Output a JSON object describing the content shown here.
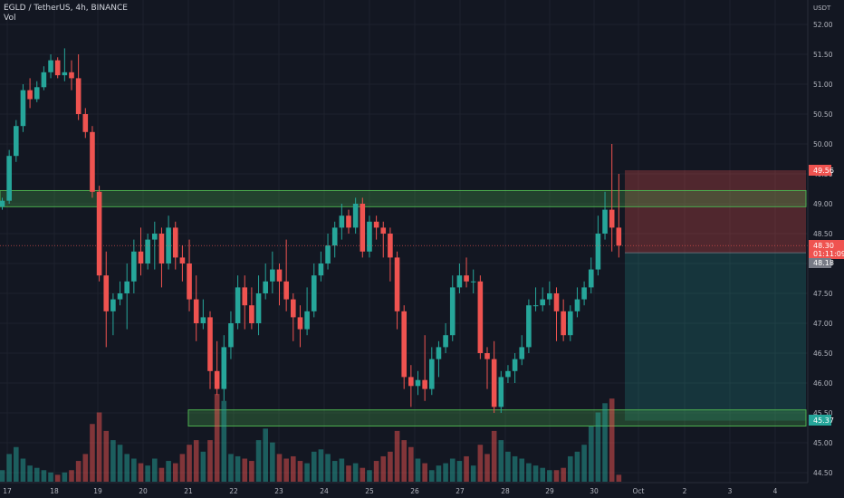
{
  "header": {
    "symbol_line": "EGLD / TetherUS, 4h, BINANCE",
    "volume_label": "Vol"
  },
  "axis": {
    "currency": "USDT",
    "price_ticks": [
      "52.00",
      "51.50",
      "51.00",
      "50.50",
      "50.00",
      "49.50",
      "49.00",
      "48.50",
      "48.00",
      "47.50",
      "47.00",
      "46.50",
      "46.00",
      "45.50",
      "45.00",
      "44.50"
    ],
    "date_ticks": [
      "17",
      "18",
      "19",
      "20",
      "21",
      "22",
      "23",
      "24",
      "25",
      "26",
      "27",
      "28",
      "29",
      "30",
      "Oct",
      "2",
      "3",
      "4"
    ]
  },
  "badges": {
    "target_price": "49.56",
    "last_price": "48.30",
    "countdown": "01:11:09",
    "position_price": "48.18",
    "stop_price": "45.37"
  },
  "colors": {
    "background": "#131722",
    "up": "#26a69a",
    "down": "#ef5350",
    "zone_fill": "rgba(76,175,80,0.28)",
    "zone_stroke": "#4caf50"
  },
  "chart_data": {
    "type": "candlestick",
    "symbol": "EGLD / TetherUS",
    "timeframe": "4h",
    "exchange": "BINANCE",
    "price_range": [
      44.4,
      52.2
    ],
    "current_price": 48.3,
    "zones": [
      {
        "low": 48.95,
        "high": 49.22
      },
      {
        "low": 45.28,
        "high": 45.55
      }
    ],
    "position": {
      "entry": 48.18,
      "target": 49.56,
      "stop": 45.37
    },
    "candles": [
      [
        48.95,
        49.05,
        48.9,
        49.1
      ],
      [
        49.05,
        49.8,
        49.0,
        49.9
      ],
      [
        49.8,
        50.3,
        49.7,
        50.4
      ],
      [
        50.3,
        50.9,
        50.2,
        51.0
      ],
      [
        50.9,
        50.75,
        50.6,
        51.1
      ],
      [
        50.75,
        50.95,
        50.7,
        51.05
      ],
      [
        50.95,
        51.2,
        50.9,
        51.3
      ],
      [
        51.2,
        51.4,
        51.1,
        51.5
      ],
      [
        51.4,
        51.15,
        51.1,
        51.45
      ],
      [
        51.15,
        51.2,
        51.05,
        51.6
      ],
      [
        51.2,
        51.1,
        50.9,
        51.4
      ],
      [
        51.1,
        50.5,
        50.4,
        51.5
      ],
      [
        50.5,
        50.2,
        50.1,
        50.6
      ],
      [
        50.2,
        49.2,
        49.1,
        50.3
      ],
      [
        49.2,
        47.8,
        47.7,
        49.3
      ],
      [
        47.8,
        47.2,
        46.6,
        48.2
      ],
      [
        47.2,
        47.4,
        46.8,
        47.5
      ],
      [
        47.4,
        47.5,
        47.3,
        47.7
      ],
      [
        47.5,
        47.7,
        46.9,
        48.0
      ],
      [
        47.7,
        48.2,
        47.5,
        48.4
      ],
      [
        48.2,
        48.0,
        47.8,
        48.6
      ],
      [
        48.0,
        48.4,
        47.9,
        48.5
      ],
      [
        48.4,
        48.5,
        47.9,
        48.7
      ],
      [
        48.5,
        48.0,
        47.6,
        48.6
      ],
      [
        48.0,
        48.6,
        47.9,
        48.8
      ],
      [
        48.6,
        48.1,
        47.9,
        48.7
      ],
      [
        48.1,
        48.0,
        47.7,
        48.3
      ],
      [
        48.0,
        47.4,
        47.2,
        48.4
      ],
      [
        47.4,
        47.0,
        46.7,
        47.8
      ],
      [
        47.0,
        47.1,
        46.9,
        47.4
      ],
      [
        47.1,
        46.2,
        45.9,
        47.2
      ],
      [
        46.2,
        45.9,
        45.8,
        46.7
      ],
      [
        45.9,
        46.6,
        45.7,
        46.8
      ],
      [
        46.6,
        47.0,
        46.4,
        47.2
      ],
      [
        47.0,
        47.6,
        46.9,
        47.8
      ],
      [
        47.6,
        47.3,
        46.9,
        47.8
      ],
      [
        47.3,
        47.0,
        46.9,
        47.6
      ],
      [
        47.0,
        47.5,
        46.8,
        47.8
      ],
      [
        47.5,
        47.7,
        47.4,
        48.0
      ],
      [
        47.7,
        47.9,
        47.5,
        48.2
      ],
      [
        47.9,
        47.7,
        47.3,
        48.0
      ],
      [
        47.7,
        47.4,
        47.2,
        48.4
      ],
      [
        47.4,
        47.1,
        46.7,
        47.5
      ],
      [
        47.1,
        46.9,
        46.6,
        47.3
      ],
      [
        46.9,
        47.2,
        46.8,
        47.6
      ],
      [
        47.2,
        47.8,
        47.1,
        48.0
      ],
      [
        47.8,
        48.0,
        47.7,
        48.2
      ],
      [
        48.0,
        48.3,
        47.9,
        48.5
      ],
      [
        48.3,
        48.6,
        48.1,
        48.7
      ],
      [
        48.6,
        48.8,
        48.4,
        49.0
      ],
      [
        48.8,
        48.6,
        48.5,
        48.9
      ],
      [
        48.6,
        49.0,
        48.5,
        49.1
      ],
      [
        49.0,
        48.2,
        48.1,
        49.1
      ],
      [
        48.2,
        48.7,
        48.1,
        48.8
      ],
      [
        48.7,
        48.6,
        48.4,
        48.8
      ],
      [
        48.6,
        48.5,
        48.1,
        48.7
      ],
      [
        48.5,
        48.1,
        47.7,
        48.6
      ],
      [
        48.1,
        47.2,
        46.9,
        48.2
      ],
      [
        47.2,
        46.1,
        45.9,
        47.3
      ],
      [
        46.1,
        45.95,
        45.6,
        46.3
      ],
      [
        45.95,
        46.05,
        45.8,
        46.2
      ],
      [
        46.05,
        45.9,
        45.7,
        46.8
      ],
      [
        45.9,
        46.4,
        45.8,
        46.6
      ],
      [
        46.4,
        46.6,
        46.1,
        46.7
      ],
      [
        46.6,
        46.8,
        46.5,
        47.0
      ],
      [
        46.8,
        47.6,
        46.7,
        47.8
      ],
      [
        47.6,
        47.8,
        47.5,
        48.0
      ],
      [
        47.8,
        47.7,
        47.6,
        48.1
      ],
      [
        47.7,
        47.7,
        47.5,
        47.9
      ],
      [
        47.7,
        46.5,
        46.4,
        47.8
      ],
      [
        46.5,
        46.4,
        45.9,
        46.6
      ],
      [
        46.4,
        45.6,
        45.5,
        46.7
      ],
      [
        45.6,
        46.1,
        45.5,
        46.2
      ],
      [
        46.1,
        46.2,
        46.0,
        46.3
      ],
      [
        46.2,
        46.4,
        46.0,
        46.5
      ],
      [
        46.4,
        46.6,
        46.3,
        46.8
      ],
      [
        46.6,
        47.3,
        46.5,
        47.4
      ],
      [
        47.3,
        47.3,
        47.2,
        47.6
      ],
      [
        47.3,
        47.4,
        47.2,
        47.6
      ],
      [
        47.4,
        47.5,
        47.3,
        47.7
      ],
      [
        47.5,
        47.2,
        46.7,
        47.6
      ],
      [
        47.2,
        46.8,
        46.7,
        47.4
      ],
      [
        46.8,
        47.2,
        46.7,
        47.3
      ],
      [
        47.2,
        47.4,
        47.1,
        47.6
      ],
      [
        47.4,
        47.6,
        47.3,
        47.7
      ],
      [
        47.6,
        47.9,
        47.5,
        48.1
      ],
      [
        47.9,
        48.5,
        47.8,
        48.8
      ],
      [
        48.5,
        48.9,
        48.4,
        49.2
      ],
      [
        48.9,
        48.6,
        48.2,
        50.0
      ],
      [
        48.6,
        48.3,
        48.1,
        49.5
      ]
    ],
    "volumes": [
      5,
      12,
      15,
      10,
      7,
      6,
      5,
      4,
      3,
      4,
      5,
      9,
      12,
      25,
      30,
      22,
      18,
      16,
      12,
      10,
      8,
      7,
      10,
      6,
      9,
      8,
      12,
      16,
      18,
      13,
      18,
      38,
      35,
      12,
      11,
      10,
      9,
      18,
      23,
      17,
      12,
      10,
      11,
      9,
      8,
      13,
      14,
      12,
      9,
      10,
      7,
      8,
      6,
      5,
      9,
      11,
      13,
      22,
      18,
      15,
      10,
      8,
      5,
      7,
      8,
      10,
      9,
      11,
      7,
      16,
      12,
      22,
      18,
      13,
      11,
      10,
      8,
      7,
      6,
      5,
      5,
      6,
      11,
      13,
      16,
      24,
      30,
      34,
      36,
      3
    ],
    "volume_direction": [
      1,
      1,
      1,
      1,
      1,
      1,
      1,
      1,
      0,
      1,
      0,
      0,
      0,
      0,
      0,
      0,
      1,
      1,
      1,
      1,
      0,
      1,
      1,
      0,
      1,
      0,
      0,
      0,
      0,
      1,
      0,
      0,
      1,
      1,
      1,
      0,
      0,
      1,
      1,
      1,
      0,
      0,
      0,
      0,
      1,
      1,
      1,
      1,
      1,
      1,
      0,
      1,
      0,
      1,
      0,
      0,
      0,
      0,
      0,
      0,
      1,
      0,
      1,
      1,
      1,
      1,
      1,
      0,
      1,
      0,
      0,
      0,
      1,
      1,
      1,
      1,
      1,
      1,
      1,
      1,
      0,
      0,
      1,
      1,
      1,
      1,
      1,
      1,
      0,
      0
    ]
  }
}
